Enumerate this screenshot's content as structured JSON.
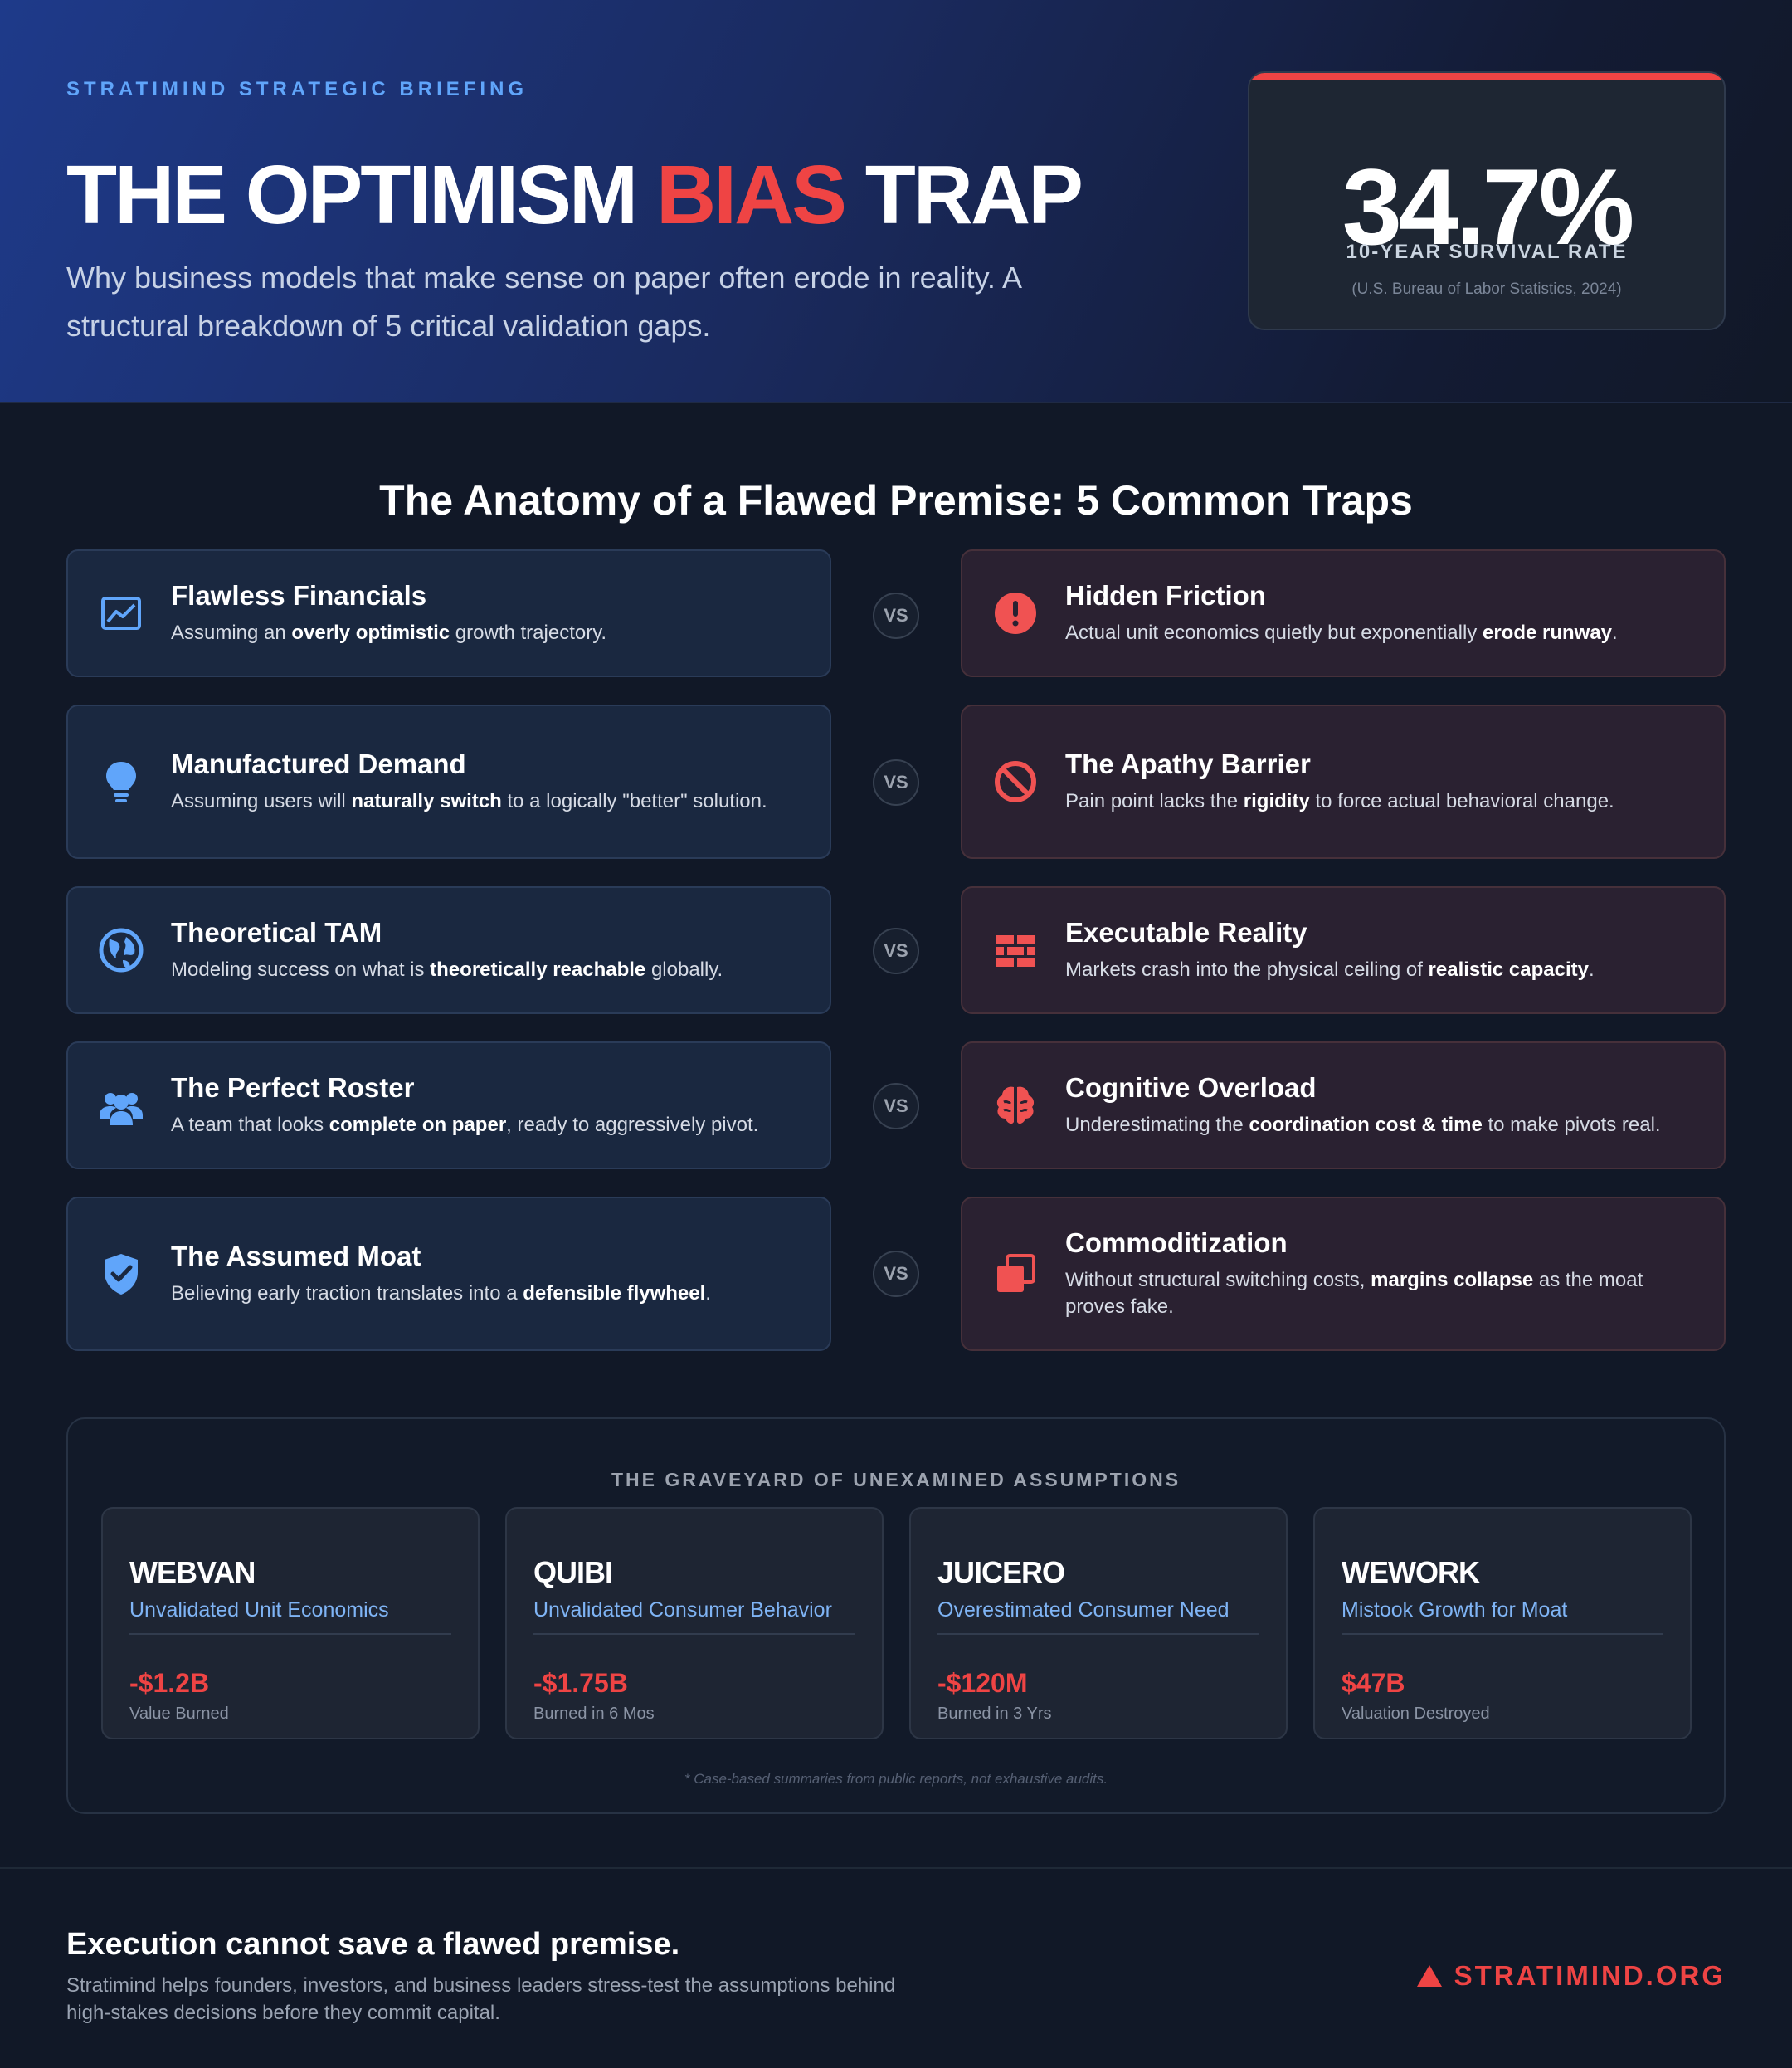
{
  "header": {
    "kicker": "STRATIMIND STRATEGIC BRIEFING",
    "title_part1": "THE OPTIMISM ",
    "title_accent": "BIAS",
    "title_part2": " TRAP",
    "subtitle": "Why business models that make sense on paper often erode in reality. A structural breakdown of 5 critical validation gaps.",
    "stat": {
      "value": "34.7%",
      "label": "10-YEAR SURVIVAL RATE",
      "source": "(U.S. Bureau of Labor Statistics, 2024)"
    }
  },
  "traps": {
    "title": "The Anatomy of a Flawed Premise: 5 Common Traps",
    "vs_label": "VS",
    "pairs": [
      {
        "assumption": {
          "icon": "chart-line-icon",
          "title": "Flawless Financials",
          "desc_pre": "Assuming an ",
          "desc_bold": "overly optimistic",
          "desc_post": " growth trajectory."
        },
        "reality": {
          "icon": "alert-circle-icon",
          "title": "Hidden Friction",
          "desc_pre": "Actual unit economics quietly but exponentially ",
          "desc_bold": "erode runway",
          "desc_post": "."
        }
      },
      {
        "assumption": {
          "icon": "lightbulb-icon",
          "title": "Manufactured Demand",
          "desc_pre": "Assuming users will ",
          "desc_bold": "naturally switch",
          "desc_post": " to a logically \"better\" solution."
        },
        "reality": {
          "icon": "ban-icon",
          "title": "The Apathy Barrier",
          "desc_pre": "Pain point lacks the ",
          "desc_bold": "rigidity",
          "desc_post": " to force actual behavioral change."
        }
      },
      {
        "assumption": {
          "icon": "globe-icon",
          "title": "Theoretical TAM",
          "desc_pre": "Modeling success on what is ",
          "desc_bold": "theoretically reachable",
          "desc_post": " globally."
        },
        "reality": {
          "icon": "brick-wall-icon",
          "title": "Executable Reality",
          "desc_pre": "Markets crash into the physical ceiling of ",
          "desc_bold": "realistic capacity",
          "desc_post": "."
        }
      },
      {
        "assumption": {
          "icon": "users-icon",
          "title": "The Perfect Roster",
          "desc_pre": "A team that looks ",
          "desc_bold": "complete on paper",
          "desc_post": ", ready to aggressively pivot."
        },
        "reality": {
          "icon": "brain-icon",
          "title": "Cognitive Overload",
          "desc_pre": "Underestimating the ",
          "desc_bold": "coordination cost & time",
          "desc_post": " to make pivots real."
        }
      },
      {
        "assumption": {
          "icon": "shield-check-icon",
          "title": "The Assumed Moat",
          "desc_pre": "Believing early traction translates into a ",
          "desc_bold": "defensible flywheel",
          "desc_post": "."
        },
        "reality": {
          "icon": "copy-icon",
          "title": "Commoditization",
          "desc_pre": "Without structural switching costs, ",
          "desc_bold": "margins collapse",
          "desc_post": " as the moat proves fake."
        }
      }
    ]
  },
  "graveyard": {
    "title": "THE GRAVEYARD OF UNEXAMINED ASSUMPTIONS",
    "cases": [
      {
        "name": "WEBVAN",
        "reason": "Unvalidated Unit Economics",
        "value": "-$1.2B",
        "note": "Value Burned"
      },
      {
        "name": "QUIBI",
        "reason": "Unvalidated Consumer Behavior",
        "value": "-$1.75B",
        "note": "Burned in 6 Mos"
      },
      {
        "name": "JUICERO",
        "reason": "Overestimated Consumer Need",
        "value": "-$120M",
        "note": "Burned in 3 Yrs"
      },
      {
        "name": "WEWORK",
        "reason": "Mistook Growth for Moat",
        "value": "$47B",
        "note": "Valuation Destroyed"
      }
    ],
    "footnote": "* Case-based summaries from public reports, not exhaustive audits."
  },
  "footer": {
    "title": "Execution cannot save a flawed premise.",
    "text": "Stratimind helps founders, investors, and business leaders stress-test the assumptions behind high-stakes decisions before they commit capital.",
    "brand_icon": "triangle-icon",
    "brand": "STRATIMIND.ORG"
  },
  "colors": {
    "accent_red": "#ef4444",
    "accent_blue": "#60a5fa",
    "background": "#111827"
  }
}
